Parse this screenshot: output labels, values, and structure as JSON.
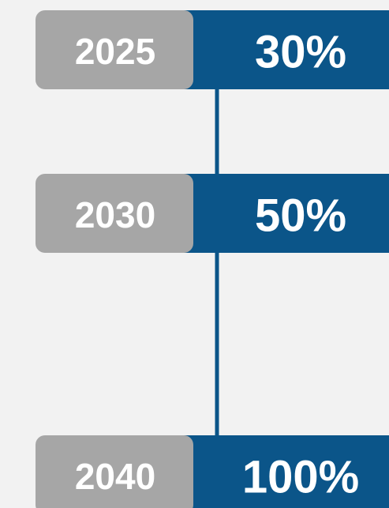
{
  "nodes": [
    {
      "year": "2025",
      "value": "30%"
    },
    {
      "year": "2030",
      "value": "50%"
    },
    {
      "year": "2040",
      "value": "100%"
    }
  ]
}
